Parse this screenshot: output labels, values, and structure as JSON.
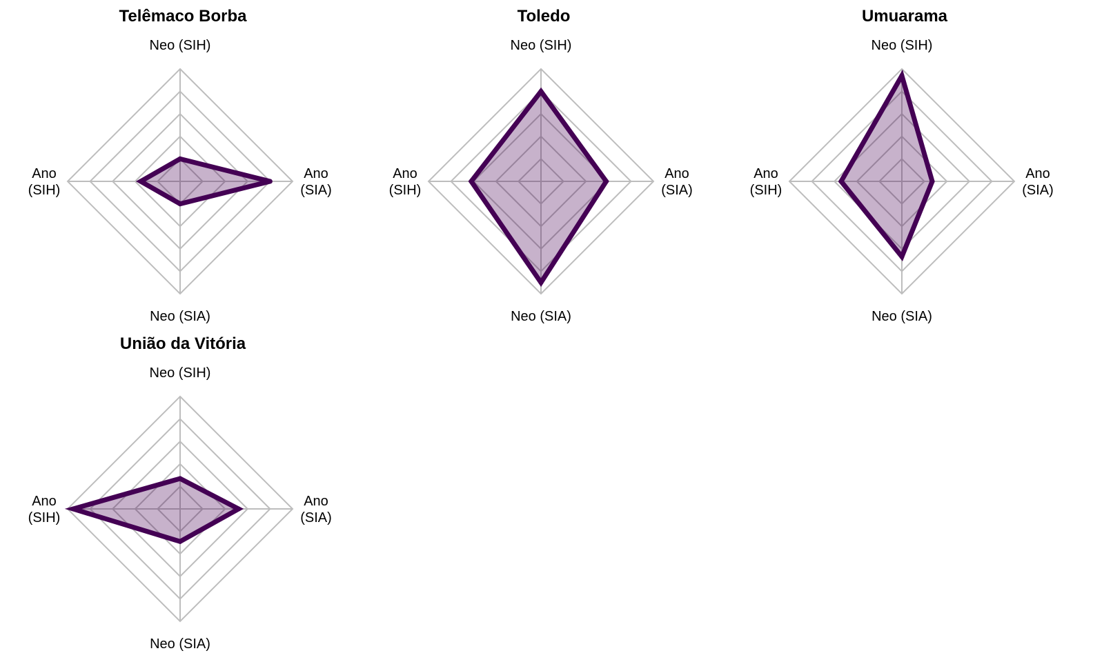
{
  "colors": {
    "line": "#440154",
    "fill": "#440154",
    "grid": "#bdbdbd"
  },
  "chart_data": [
    {
      "type": "radar",
      "title": "Telêmaco Borba",
      "axes": [
        "Neo (SIH)",
        "Ano (SIA)",
        "Neo (SIA)",
        "Ano (SIH)"
      ],
      "axis_labels": [
        [
          "Neo (SIH)"
        ],
        [
          "Ano",
          "(SIA)"
        ],
        [
          "Neo (SIA)"
        ],
        [
          "Ano",
          "(SIH)"
        ]
      ],
      "values": [
        0.2,
        0.8,
        0.2,
        0.35
      ],
      "ylim": [
        0,
        1
      ],
      "grid_levels": 5
    },
    {
      "type": "radar",
      "title": "Toledo",
      "axes": [
        "Neo (SIH)",
        "Ano (SIA)",
        "Neo (SIA)",
        "Ano (SIH)"
      ],
      "axis_labels": [
        [
          "Neo (SIH)"
        ],
        [
          "Ano",
          "(SIA)"
        ],
        [
          "Neo (SIA)"
        ],
        [
          "Ano",
          "(SIH)"
        ]
      ],
      "values": [
        0.8,
        0.58,
        0.9,
        0.62
      ],
      "ylim": [
        0,
        1
      ],
      "grid_levels": 5
    },
    {
      "type": "radar",
      "title": "Umuarama",
      "axes": [
        "Neo (SIH)",
        "Ano (SIA)",
        "Neo (SIA)",
        "Ano (SIH)"
      ],
      "axis_labels": [
        [
          "Neo (SIH)"
        ],
        [
          "Ano",
          "(SIA)"
        ],
        [
          "Neo (SIA)"
        ],
        [
          "Ano",
          "(SIH)"
        ]
      ],
      "values": [
        0.94,
        0.27,
        0.67,
        0.54
      ],
      "ylim": [
        0,
        1
      ],
      "grid_levels": 5
    },
    {
      "type": "radar",
      "title": "União da Vitória",
      "axes": [
        "Neo (SIH)",
        "Ano (SIA)",
        "Neo (SIA)",
        "Ano (SIH)"
      ],
      "axis_labels": [
        [
          "Neo (SIH)"
        ],
        [
          "Ano",
          "(SIA)"
        ],
        [
          "Neo (SIA)"
        ],
        [
          "Ano",
          "(SIH)"
        ]
      ],
      "values": [
        0.27,
        0.52,
        0.29,
        0.95
      ],
      "ylim": [
        0,
        1
      ],
      "grid_levels": 5
    }
  ]
}
